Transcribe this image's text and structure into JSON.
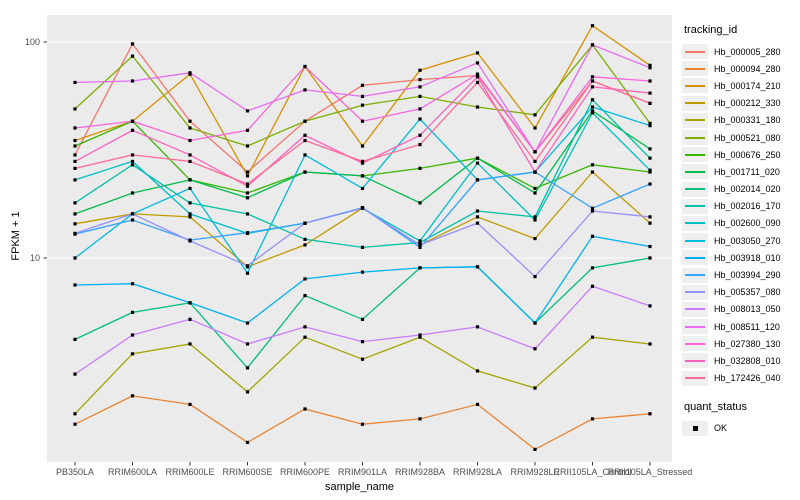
{
  "chart_data": {
    "type": "line",
    "title": "",
    "xlabel": "sample_name",
    "ylabel": "FPKM + 1",
    "y_scale": "log10",
    "y_ticks": [
      10,
      100
    ],
    "y_tick_labels": [
      "10",
      "100"
    ],
    "y_minor_ticks": [
      3.1623,
      31.623
    ],
    "ylim": [
      1.15,
      133
    ],
    "grid": true,
    "legend_position": "right",
    "legend_title": "tracking_id",
    "categories": [
      "PB350LA",
      "RRIM600LA",
      "RRIM600LE",
      "RRIM600SE",
      "RRIM600PE",
      "RRIM901LA",
      "RRIM928BA",
      "RRIM928LA",
      "RRIM928LE",
      "RRII105LA_Control",
      "RRII105LA_Stressed"
    ],
    "series": [
      {
        "name": "Hb_000005_280",
        "color": "#F8766D",
        "values": [
          30,
          98,
          43,
          25,
          43,
          63,
          67,
          70,
          31,
          66,
          52
        ]
      },
      {
        "name": "Hb_000094_280",
        "color": "#EA8331",
        "values": [
          1.7,
          2.3,
          2.1,
          1.4,
          2.0,
          1.7,
          1.8,
          2.1,
          1.3,
          1.8,
          1.9
        ]
      },
      {
        "name": "Hb_000174_210",
        "color": "#D89000",
        "values": [
          35,
          43,
          71,
          24,
          77,
          33,
          74,
          89,
          40,
          119,
          78
        ]
      },
      {
        "name": "Hb_000212_330",
        "color": "#C09B00",
        "values": [
          14.4,
          16,
          15.5,
          9.1,
          11.5,
          17,
          11.5,
          15.5,
          12.3,
          25,
          14.5
        ]
      },
      {
        "name": "Hb_000331_180",
        "color": "#A3A500",
        "values": [
          1.9,
          3.6,
          4.0,
          2.4,
          4.3,
          3.4,
          4.3,
          3.0,
          2.5,
          4.3,
          4.0
        ]
      },
      {
        "name": "Hb_000521_080",
        "color": "#7CAE00",
        "values": [
          49,
          86,
          40,
          33,
          43,
          51,
          56,
          50,
          46,
          97,
          42
        ]
      },
      {
        "name": "Hb_000676_250",
        "color": "#39B600",
        "values": [
          33,
          43,
          23,
          20,
          25,
          24,
          26,
          29,
          21,
          27,
          25
        ]
      },
      {
        "name": "Hb_001711_020",
        "color": "#00BB4E",
        "values": [
          16,
          20,
          23,
          19,
          25,
          24,
          18,
          29,
          20,
          48,
          32
        ]
      },
      {
        "name": "Hb_002014_020",
        "color": "#00BF7D",
        "values": [
          4.2,
          5.6,
          6.2,
          3.1,
          6.7,
          5.2,
          9.0,
          9.1,
          5.0,
          9.0,
          10
        ]
      },
      {
        "name": "Hb_002016_170",
        "color": "#00C1A3",
        "values": [
          18,
          27,
          18,
          16,
          12.2,
          11.2,
          11.8,
          16.5,
          15.5,
          54,
          29
        ]
      },
      {
        "name": "Hb_002600_090",
        "color": "#00BFC4",
        "values": [
          23,
          28,
          16,
          13,
          14.5,
          17,
          12,
          27.5,
          15,
          47,
          25.5
        ]
      },
      {
        "name": "Hb_003050_270",
        "color": "#00BAE0",
        "values": [
          10,
          16,
          21,
          8.5,
          30,
          21,
          44,
          23,
          25,
          50,
          41
        ]
      },
      {
        "name": "Hb_003918_010",
        "color": "#00B0F6",
        "values": [
          7.5,
          7.6,
          6.2,
          5.0,
          8.0,
          8.6,
          9.0,
          9.1,
          5.0,
          12.6,
          11.3
        ]
      },
      {
        "name": "Hb_003994_290",
        "color": "#35A2FF",
        "values": [
          12.9,
          15,
          12.1,
          13.1,
          14.5,
          17.1,
          11.2,
          23,
          25,
          17,
          22
        ]
      },
      {
        "name": "Hb_005357_080",
        "color": "#9590FF",
        "values": [
          13,
          16,
          12,
          9.2,
          14.5,
          17,
          11.5,
          14.5,
          8.2,
          16.5,
          15.5
        ]
      },
      {
        "name": "Hb_008013_050",
        "color": "#C77CFF",
        "values": [
          2.9,
          4.4,
          5.2,
          4.0,
          4.8,
          4.1,
          4.4,
          4.8,
          3.8,
          7.4,
          6.0
        ]
      },
      {
        "name": "Hb_008511_120",
        "color": "#E76BF3",
        "values": [
          65,
          66,
          72,
          48,
          60,
          56,
          62,
          80,
          31,
          97,
          76
        ]
      },
      {
        "name": "Hb_027380_130",
        "color": "#FA62DB",
        "values": [
          40,
          43,
          35,
          39,
          77,
          43,
          49,
          71,
          31,
          69,
          66
        ]
      },
      {
        "name": "Hb_032808_010",
        "color": "#FF62BC",
        "values": [
          28,
          39,
          30,
          21.5,
          37,
          27.5,
          37,
          69,
          25,
          62,
          58
        ]
      },
      {
        "name": "Hb_172426_040",
        "color": "#FF6A98",
        "values": [
          26,
          30,
          28,
          22,
          35,
          28,
          33.5,
          65,
          28,
          66,
          52
        ]
      }
    ],
    "quant_status": {
      "title": "quant_status",
      "items": [
        {
          "label": "OK",
          "marker": "black-square"
        }
      ]
    }
  },
  "colors": {
    "panel_bg": "#EBEBEB",
    "grid_major": "#FFFFFF",
    "grid_minor": "#F5F5F5",
    "legend_key_bg": "#EFEFEF",
    "axis_text": "#4D4D4D",
    "tick_mark": "#333333",
    "marker": "#000000"
  }
}
